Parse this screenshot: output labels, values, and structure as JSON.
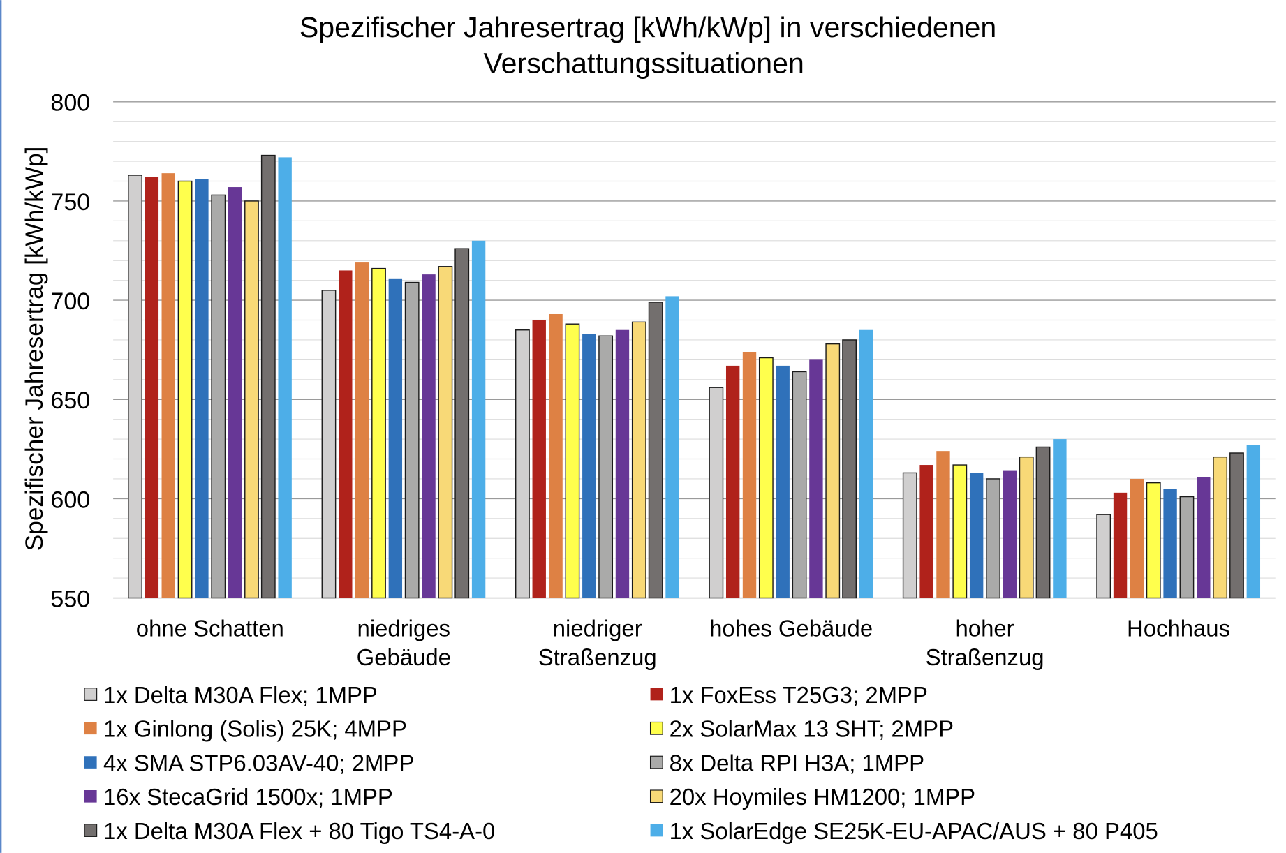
{
  "chart_data": {
    "type": "bar",
    "title": "Spezifischer Jahresertrag [kWh/kWp] in verschiedenen Verschattungssituationen",
    "title_lines": [
      "Spezifischer Jahresertrag [kWh/kWp] in verschiedenen",
      "Verschattungssituationen"
    ],
    "xlabel": "",
    "ylabel": "Spezifischer Jahresertrag [kWh/kWp]",
    "ylim": [
      550,
      800
    ],
    "yticks": [
      "550",
      "600",
      "650",
      "700",
      "750",
      "800"
    ],
    "ytick_values": [
      550,
      600,
      650,
      700,
      750,
      800
    ],
    "minor_grid_step": 10,
    "grid": true,
    "legend_position": "bottom",
    "categories": [
      [
        "ohne Schatten"
      ],
      [
        "niedriges",
        "Gebäude"
      ],
      [
        "niedriger",
        "Straßenzug"
      ],
      [
        "hohes Gebäude"
      ],
      [
        "hoher",
        "Straßenzug"
      ],
      [
        "Hochhaus"
      ]
    ],
    "series": [
      {
        "name": "1x Delta M30A Flex; 1MPP",
        "color": "#d0cfcf",
        "outline": true,
        "values": [
          763,
          705,
          685,
          656,
          613,
          592
        ]
      },
      {
        "name": "1x FoxEss T25G3; 2MPP",
        "color": "#b0221b",
        "outline": false,
        "values": [
          762,
          715,
          690,
          667,
          617,
          603
        ]
      },
      {
        "name": "1x Ginlong (Solis) 25K; 4MPP",
        "color": "#de8144",
        "outline": false,
        "values": [
          764,
          719,
          693,
          674,
          624,
          610
        ]
      },
      {
        "name": "2x SolarMax 13 SHT; 2MPP",
        "color": "#ffff4d",
        "outline": true,
        "values": [
          760,
          716,
          688,
          671,
          617,
          608
        ]
      },
      {
        "name": "4x SMA STP6.03AV-40; 2MPP",
        "color": "#2f71ba",
        "outline": false,
        "values": [
          761,
          711,
          683,
          667,
          613,
          605
        ]
      },
      {
        "name": "8x Delta RPI H3A; 1MPP",
        "color": "#aaaaa9",
        "outline": true,
        "values": [
          753,
          709,
          682,
          664,
          610,
          601
        ]
      },
      {
        "name": "16x StecaGrid 1500x; 1MPP",
        "color": "#673796",
        "outline": false,
        "values": [
          757,
          713,
          685,
          670,
          614,
          611
        ]
      },
      {
        "name": "20x Hoymiles HM1200; 1MPP",
        "color": "#f8d977",
        "outline": true,
        "values": [
          750,
          717,
          689,
          678,
          621,
          621
        ]
      },
      {
        "name": "1x Delta M30A Flex + 80 Tigo TS4-A-0",
        "color": "#736f6e",
        "outline": true,
        "values": [
          773,
          726,
          699,
          680,
          626,
          623
        ]
      },
      {
        "name": "1x SolarEdge SE25K-EU-APAC/AUS + 80 P405",
        "color": "#4daee8",
        "outline": false,
        "values": [
          772,
          730,
          702,
          685,
          630,
          627
        ]
      }
    ]
  }
}
